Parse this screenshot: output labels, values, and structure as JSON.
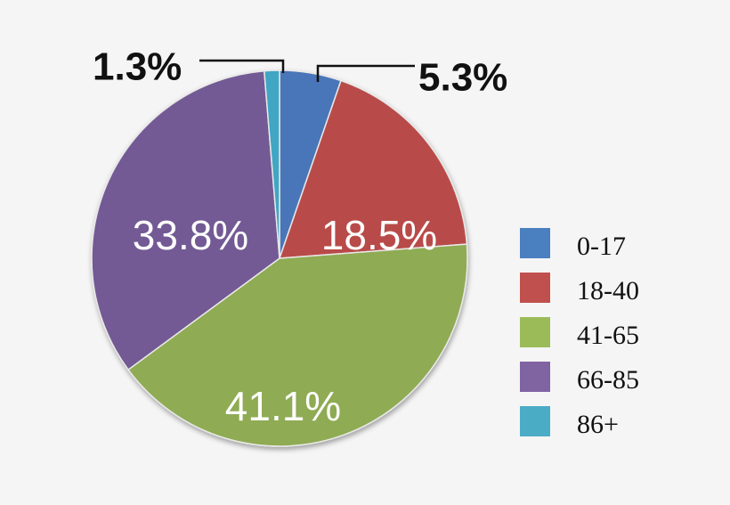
{
  "chart_data": {
    "type": "pie",
    "title": "",
    "slices": [
      {
        "label": "0-17",
        "value": 5.3,
        "value_label": "5.3%",
        "color": "#4a76b8"
      },
      {
        "label": "18-40",
        "value": 18.5,
        "value_label": "18.5%",
        "color": "#b84b4a"
      },
      {
        "label": "41-65",
        "value": 41.1,
        "value_label": "41.1%",
        "color": "#8fab52"
      },
      {
        "label": "66-85",
        "value": 33.8,
        "value_label": "33.8%",
        "color": "#735a94"
      },
      {
        "label": "86+",
        "value": 1.3,
        "value_label": "1.3%",
        "color": "#3fa6c4"
      }
    ],
    "legend_position": "right",
    "legend_colors": [
      "#4a7fc0",
      "#c0504d",
      "#9bbb59",
      "#8064a2",
      "#4bacc6"
    ]
  }
}
